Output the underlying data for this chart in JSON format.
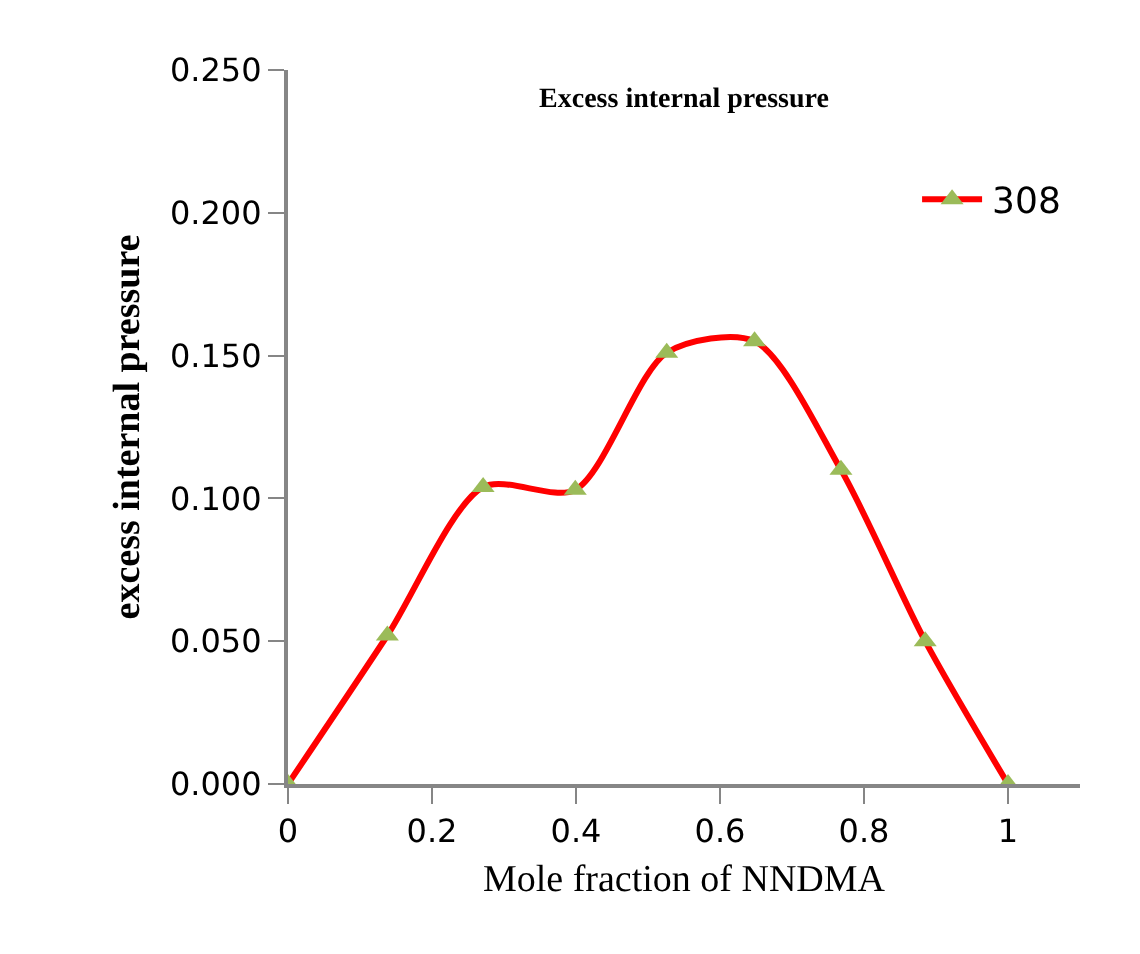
{
  "chart_data": {
    "type": "line",
    "title": "Excess internal pressure",
    "xlabel": "Mole fraction of NNDMA",
    "ylabel": "excess internal pressure",
    "x": [
      0,
      0.138,
      0.271,
      0.399,
      0.526,
      0.648,
      0.768,
      0.885,
      1
    ],
    "series": [
      {
        "name": "308",
        "color": "#ff0000",
        "values": [
          0,
          0.052,
          0.104,
          0.103,
          0.151,
          0.155,
          0.11,
          0.05,
          0
        ]
      }
    ],
    "xlim": [
      0,
      1.1
    ],
    "xticks": [
      0,
      0.2,
      0.4,
      0.6,
      0.8,
      1
    ],
    "ylim": [
      0,
      0.25
    ],
    "yticks": [
      {
        "value": 0,
        "label": "0.000"
      },
      {
        "value": 0.05,
        "label": "0.050"
      },
      {
        "value": 0.1,
        "label": "0.100"
      },
      {
        "value": 0.15,
        "label": "0.150"
      },
      {
        "value": 0.2,
        "label": "0.200"
      },
      {
        "value": 0.25,
        "label": "0.250"
      }
    ],
    "marker": "triangle",
    "legend": "top right"
  }
}
